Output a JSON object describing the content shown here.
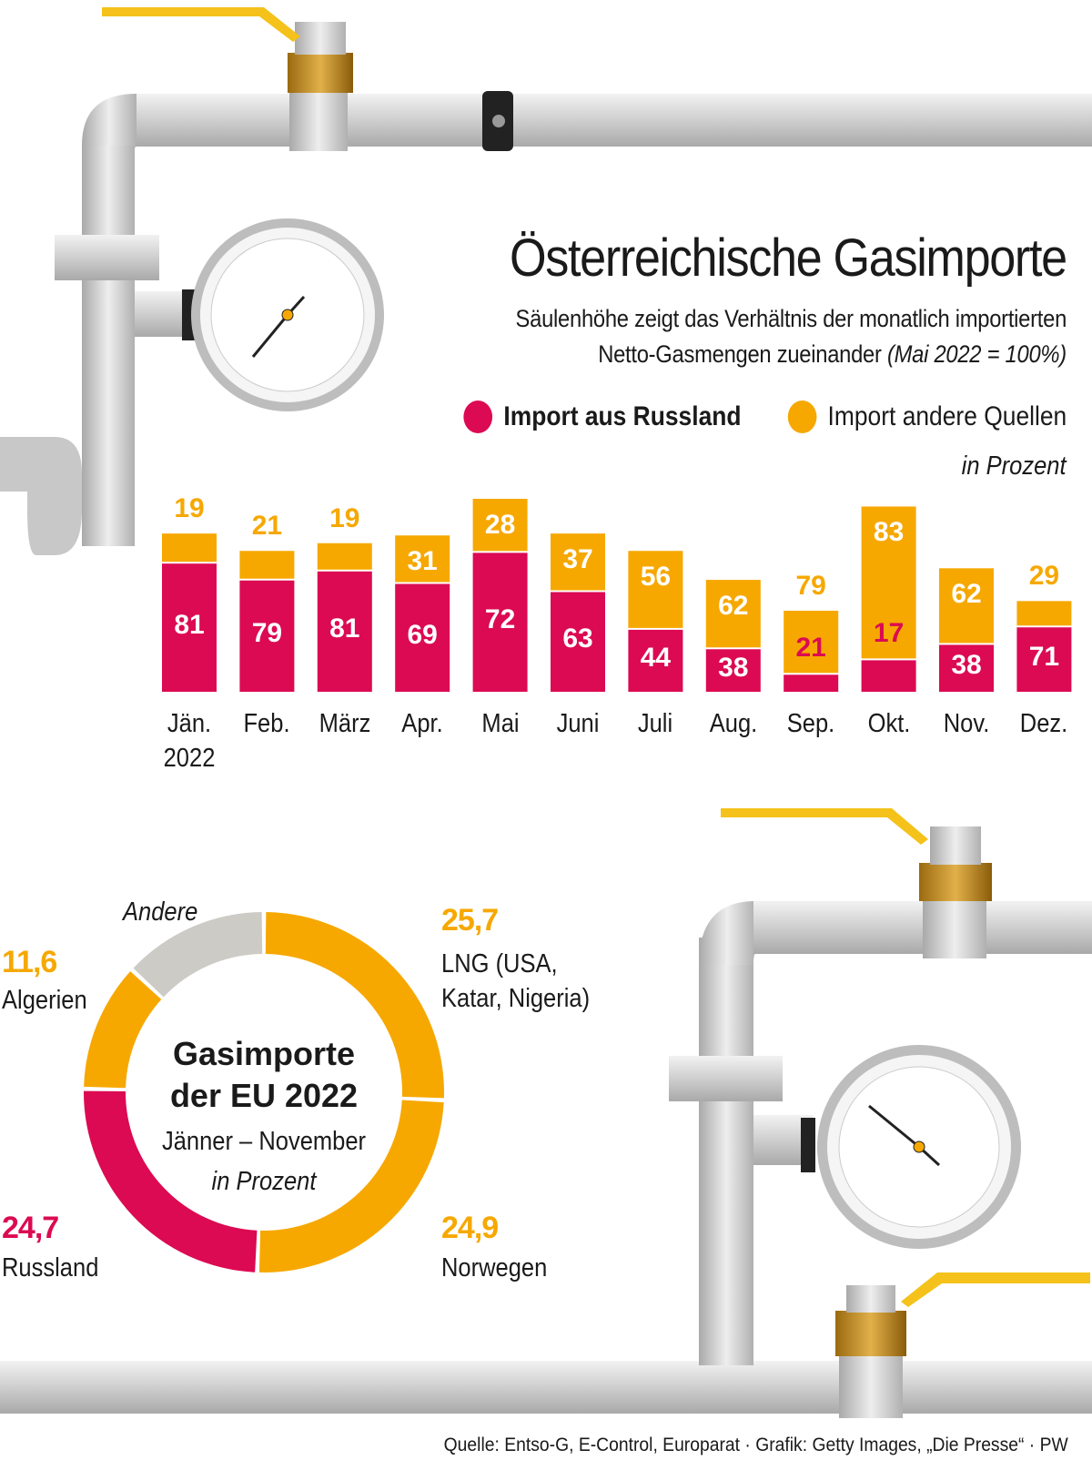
{
  "header": {
    "title": "Österreichische Gasimporte",
    "subtitle_line1": "Säulenhöhe zeigt das Verhältnis der monatlich importierten",
    "subtitle_line2": "Netto-Gasmengen zueinander",
    "subtitle_note": "(Mai 2022 = 100%)",
    "unit": "in Prozent"
  },
  "legend": [
    {
      "label": "Import aus Russland",
      "color": "#dc0a52"
    },
    {
      "label": "Import andere Quellen",
      "color": "#f6a800"
    }
  ],
  "colors": {
    "russia": "#dc0a52",
    "other": "#f6a800",
    "andere": "#cccbc6",
    "pipe": "#d6d6d6"
  },
  "chart_data": [
    {
      "type": "bar",
      "stacked": true,
      "title": "Österreichische Gasimporte",
      "ylabel": "Anteil in Prozent, Säulenhöhe relativ zu Mai 2022 = 100%",
      "categories": [
        "Jän.\n2022",
        "Feb.",
        "März",
        "Apr.",
        "Mai",
        "Juni",
        "Juli",
        "Aug.",
        "Sep.",
        "Okt.",
        "Nov.",
        "Dez."
      ],
      "relative_total_height": [
        82,
        73,
        77,
        81,
        100,
        82,
        73,
        58,
        42,
        96,
        64,
        47
      ],
      "series": [
        {
          "name": "Import aus Russland",
          "values": [
            81,
            79,
            81,
            69,
            72,
            63,
            44,
            38,
            21,
            17,
            38,
            71
          ]
        },
        {
          "name": "Import andere Quellen",
          "values": [
            19,
            21,
            19,
            31,
            28,
            37,
            56,
            62,
            79,
            83,
            62,
            29
          ]
        }
      ]
    },
    {
      "type": "pie",
      "donut": true,
      "title": "Gasimporte der EU 2022",
      "subtitle": "Jänner – November",
      "unit": "in Prozent",
      "slices": [
        {
          "name": "LNG (USA,\nKatar, Nigeria)",
          "value": 25.7,
          "label": "25,7",
          "color": "#f6a800"
        },
        {
          "name": "Norwegen",
          "value": 24.9,
          "label": "24,9",
          "color": "#f6a800"
        },
        {
          "name": "Russland",
          "value": 24.7,
          "label": "24,7",
          "color": "#dc0a52"
        },
        {
          "name": "Algerien",
          "value": 11.6,
          "label": "11,6",
          "color": "#f6a800"
        },
        {
          "name": "Andere",
          "value": 13.1,
          "label": "",
          "color": "#cccbc6"
        }
      ]
    }
  ],
  "footer": {
    "source": "Quelle: Entso-G, E-Control, Europarat · Grafik: Getty Images, „Die Presse“ · PW"
  }
}
